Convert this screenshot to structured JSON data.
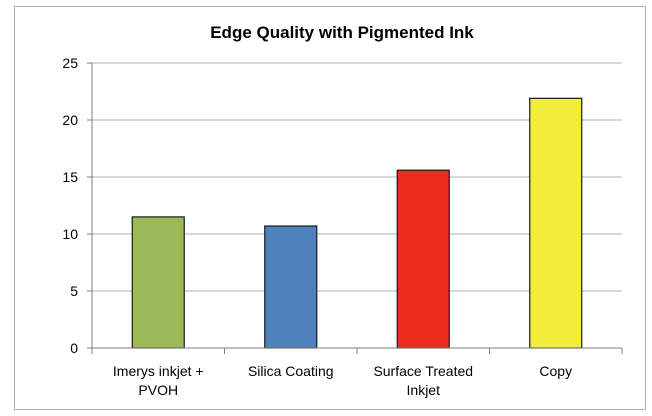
{
  "chart_data": {
    "type": "bar",
    "title": "Edge Quality with Pigmented Ink",
    "xlabel": "",
    "ylabel": "",
    "categories": [
      [
        "Imerys inkjet +",
        "PVOH"
      ],
      [
        "Silica Coating"
      ],
      [
        "Surface Treated",
        "Inkjet"
      ],
      [
        "Copy"
      ]
    ],
    "values": [
      11.5,
      10.7,
      15.6,
      21.9
    ],
    "bar_colors": [
      "#9bbb59",
      "#4f81bd",
      "#ee2b1f",
      "#f2ec3a"
    ],
    "ylim": [
      0,
      25
    ],
    "yticks": [
      0,
      5,
      10,
      15,
      20,
      25
    ],
    "grid": true,
    "legend": "none"
  }
}
